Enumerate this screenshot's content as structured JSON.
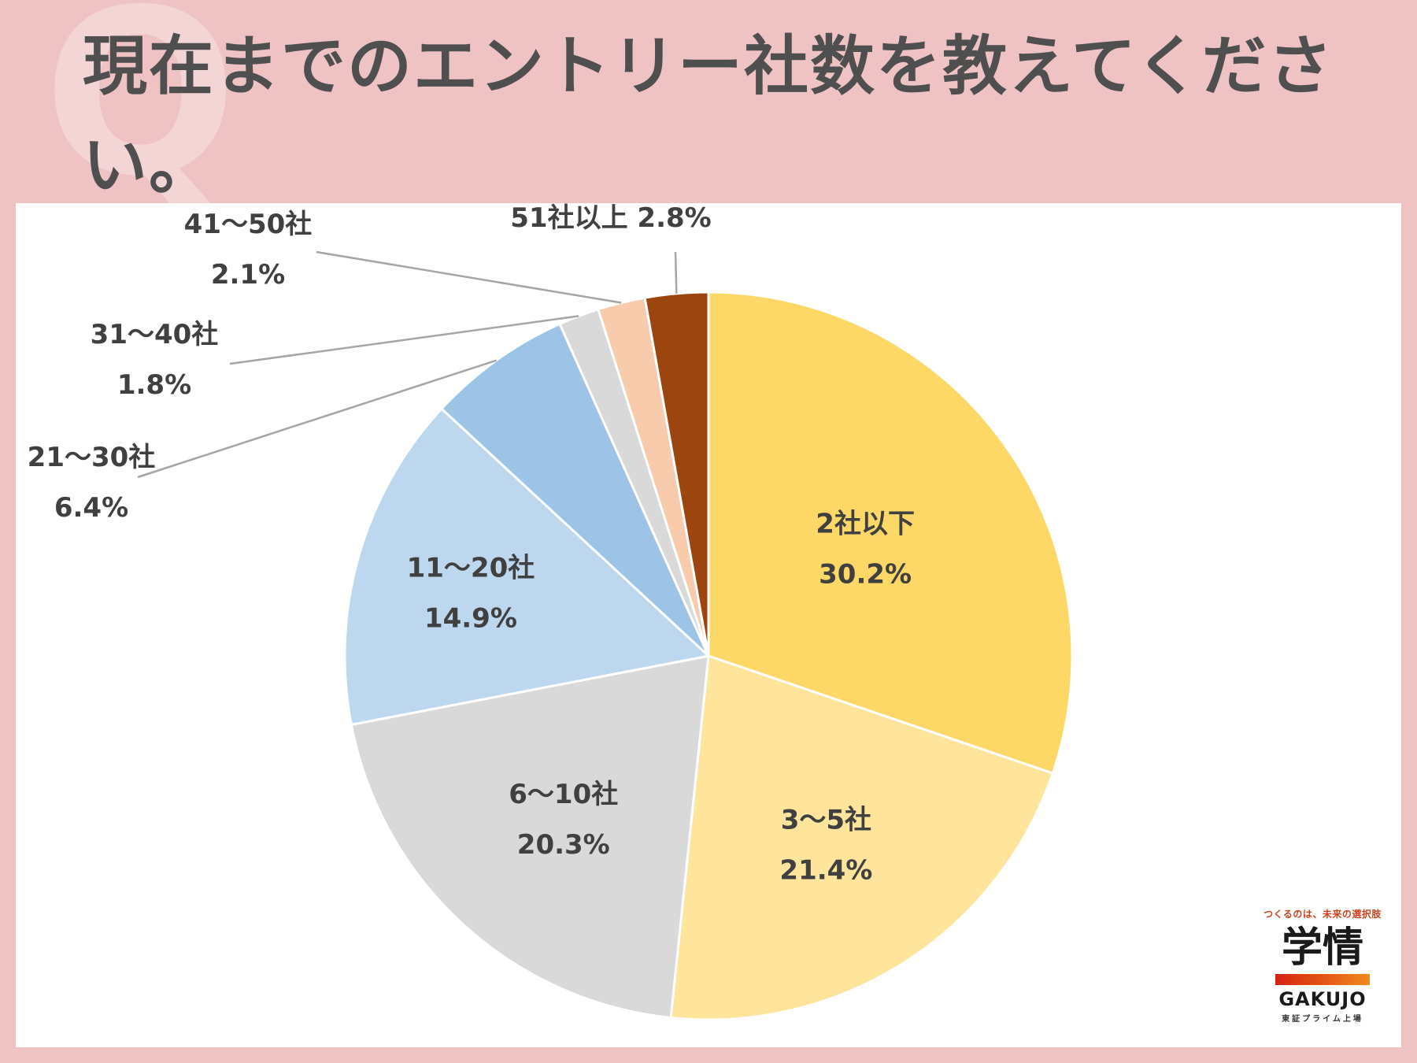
{
  "header": {
    "title": "現在までのエントリー社数を教えてください。",
    "q_mark": "Q"
  },
  "chart_data": {
    "type": "pie",
    "categories": [
      "2社以下",
      "3〜5社",
      "6〜10社",
      "11〜20社",
      "21〜30社",
      "31〜40社",
      "41〜50社",
      "51社以上"
    ],
    "values": [
      30.2,
      21.4,
      20.3,
      14.9,
      6.4,
      1.8,
      2.1,
      2.8
    ],
    "unit": "%",
    "colors": [
      "#fdd866",
      "#fee59b",
      "#d9d9d9",
      "#bdd7ee",
      "#9dc3e6",
      "#d9d9d9",
      "#f8cbad",
      "#9c450e"
    ],
    "title": "",
    "legend": "none"
  },
  "logo": {
    "tagline": "つくるのは、未来の選択肢",
    "kanji": "学情",
    "name": "GAKUJO",
    "sub": "東証プライム上場",
    "bar_colors": [
      "#d6210f",
      "#f08a1c"
    ]
  }
}
